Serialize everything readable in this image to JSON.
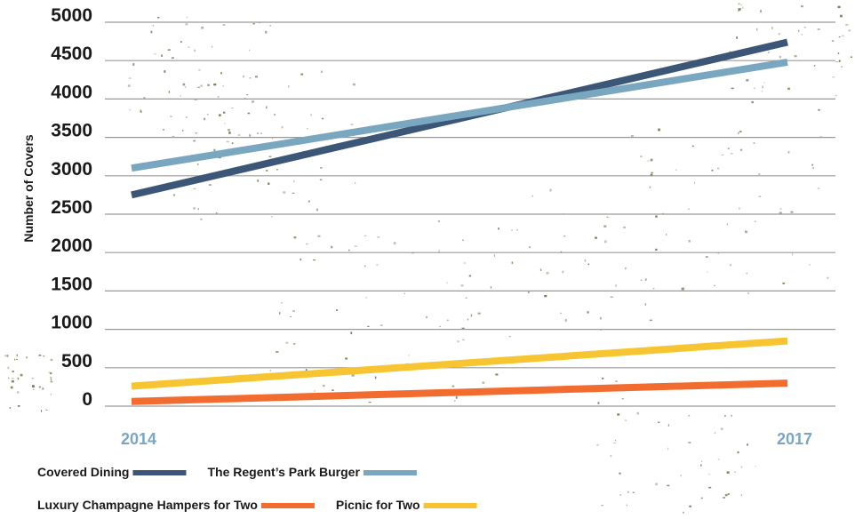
{
  "chart_data": {
    "type": "line",
    "categories": [
      "2014",
      "2017"
    ],
    "ylabel": "Number of Covers",
    "ylim": [
      0,
      5000
    ],
    "yticks": [
      0,
      500,
      1000,
      1500,
      2000,
      2500,
      3000,
      3500,
      4000,
      4500,
      5000
    ],
    "grid": true,
    "legend_position": "bottom",
    "series": [
      {
        "name": "Covered Dining",
        "values": [
          2750,
          4740
        ],
        "color": "#3b5677"
      },
      {
        "name": "The Regent’s Park Burger",
        "values": [
          3100,
          4480
        ],
        "color": "#7aa7c0"
      },
      {
        "name": "Luxury Champagne Hampers for Two",
        "values": [
          60,
          300
        ],
        "color": "#f26b2f"
      },
      {
        "name": "Picnic for Two",
        "values": [
          260,
          850
        ],
        "color": "#f7c531"
      }
    ]
  }
}
